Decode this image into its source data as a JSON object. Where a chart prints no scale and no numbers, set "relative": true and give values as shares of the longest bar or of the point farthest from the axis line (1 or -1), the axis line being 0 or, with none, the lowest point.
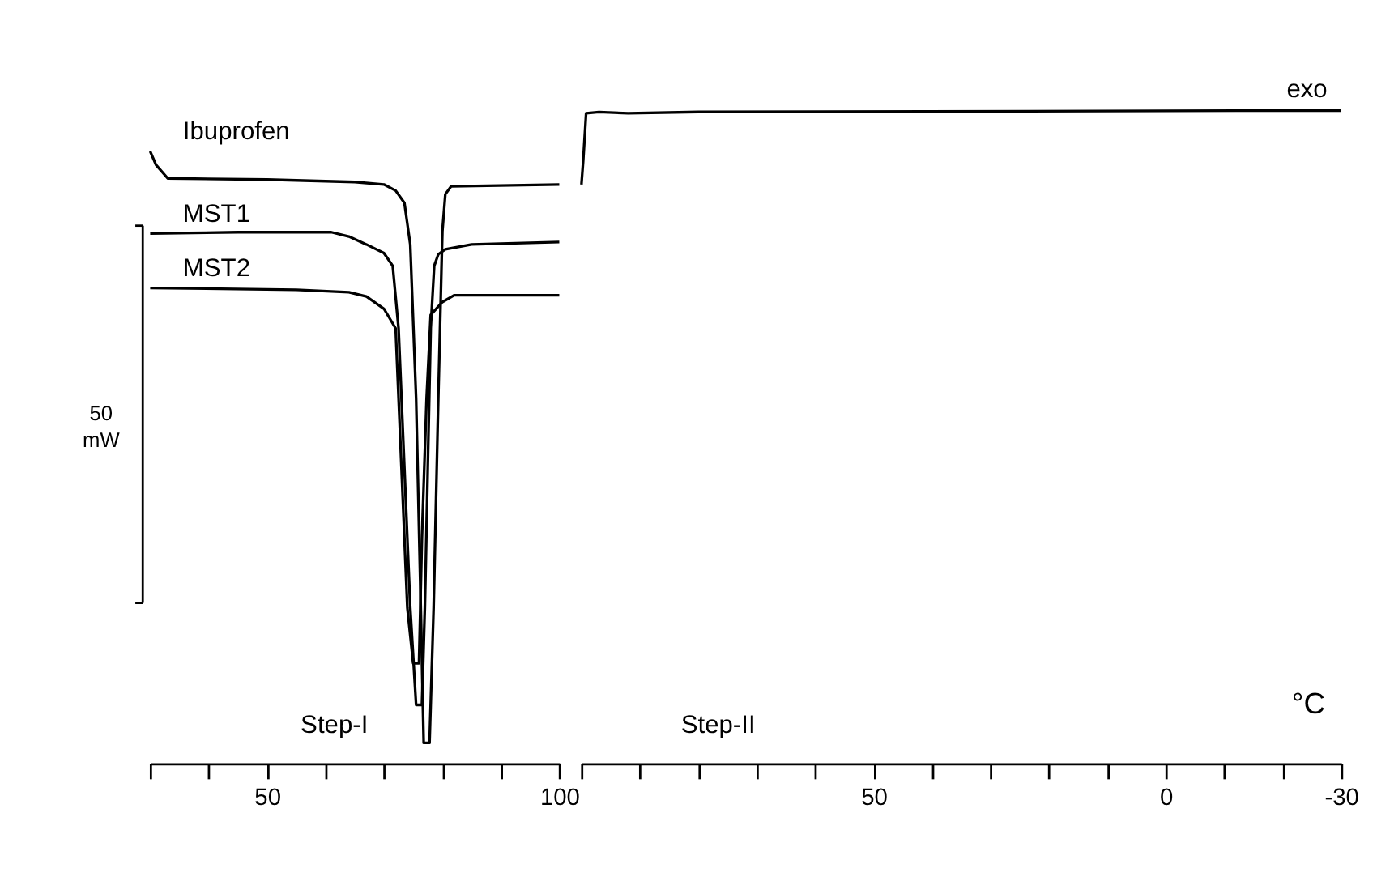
{
  "chart_data": [
    {
      "type": "line",
      "relative": true,
      "xlim": [
        30,
        100
      ],
      "xticks": [
        {
          "value": 30,
          "label": null
        },
        {
          "value": 40,
          "label": null
        },
        50,
        {
          "value": 60,
          "label": null
        },
        {
          "value": 70,
          "label": null
        },
        {
          "value": 80,
          "label": null
        },
        {
          "value": 90,
          "label": null
        },
        100
      ],
      "grid": false,
      "tick_labels": "x",
      "line_style": "solid",
      "marker": "none",
      "series": [
        {
          "name": "Ibuprofen",
          "color": "#000000",
          "x": [
            30,
            31,
            33,
            50,
            65,
            70,
            72,
            73.5,
            74.5,
            75.5,
            76.3,
            76.8,
            77.8,
            78.5,
            79.3,
            80,
            80.5,
            81.5,
            100
          ],
          "values": [
            1.0,
            0.978,
            0.956,
            0.954,
            0.95,
            0.946,
            0.936,
            0.916,
            0.848,
            0.597,
            0.255,
            0.034,
            0.034,
            0.255,
            0.597,
            0.87,
            0.93,
            0.943,
            0.946
          ]
        },
        {
          "name": "MST1",
          "color": "#000000",
          "x": [
            30,
            45,
            61,
            64,
            67,
            70,
            71.5,
            72.5,
            73.5,
            74.5,
            75.5,
            76.5,
            77,
            77.5,
            78,
            78.6,
            79.3,
            80.5,
            85,
            100
          ],
          "values": [
            0.866,
            0.868,
            0.868,
            0.861,
            0.848,
            0.834,
            0.813,
            0.711,
            0.483,
            0.255,
            0.096,
            0.096,
            0.255,
            0.483,
            0.711,
            0.813,
            0.832,
            0.84,
            0.848,
            0.852
          ]
        },
        {
          "name": "MST2",
          "color": "#000000",
          "x": [
            30,
            55,
            64,
            67,
            70,
            72,
            73,
            74,
            75,
            76,
            76.5,
            77.3,
            78,
            80,
            82,
            100
          ],
          "values": [
            0.777,
            0.774,
            0.77,
            0.763,
            0.743,
            0.711,
            0.483,
            0.255,
            0.164,
            0.164,
            0.369,
            0.597,
            0.733,
            0.754,
            0.765,
            0.765
          ]
        }
      ],
      "annotations": [
        "50 mW",
        "Step-I"
      ]
    },
    {
      "type": "line",
      "relative": true,
      "xlabel": "°C",
      "xlim": [
        100,
        -30
      ],
      "xticks": [
        {
          "value": 100,
          "label": null
        },
        {
          "value": 90,
          "label": null
        },
        {
          "value": 80,
          "label": null
        },
        {
          "value": 70,
          "label": null
        },
        {
          "value": 60,
          "label": null
        },
        50,
        {
          "value": 40,
          "label": null
        },
        {
          "value": 30,
          "label": null
        },
        {
          "value": 20,
          "label": null
        },
        {
          "value": 10,
          "label": null
        },
        0,
        {
          "value": -10,
          "label": null
        },
        {
          "value": -20,
          "label": null
        },
        -30
      ],
      "grid": false,
      "tick_labels": "x",
      "line_style": "solid",
      "marker": "none",
      "series": [
        {
          "color": "#000000",
          "x": [
            100,
            99.7,
            99.2,
            97,
            92,
            80,
            -15,
            -30
          ],
          "values": [
            0.887,
            0.923,
            0.996,
            0.998,
            0.996,
            0.998,
            1.0,
            1.0
          ]
        }
      ],
      "annotations": [
        "Step-II",
        "exo"
      ]
    }
  ]
}
